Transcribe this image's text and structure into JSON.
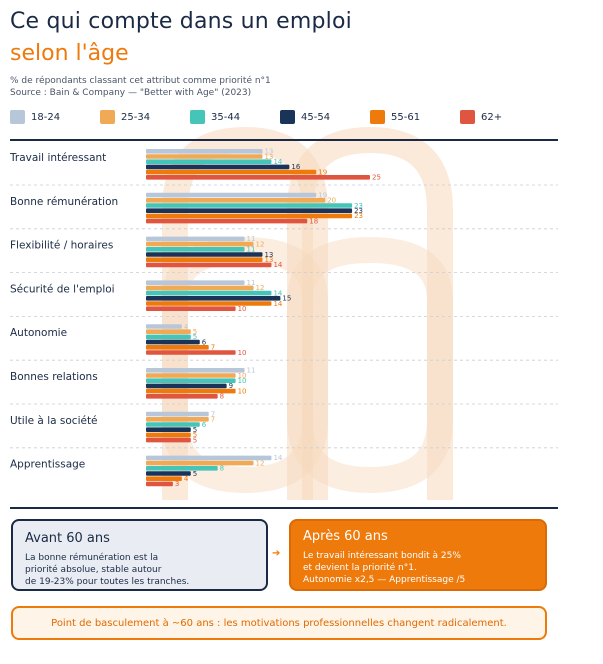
{
  "title": "Ce qui compte dans un emploi",
  "subtitle": "selon l'âge",
  "note_line1": "% de répondants classant cet attribut comme priorité n°1",
  "note_line2": "Source : Bain & Company — \"Better with Age\" (2023)",
  "colors": {
    "18-24": "#b8c6da",
    "25-34": "#f0a955",
    "35-44": "#45c4b8",
    "45-54": "#1a3358",
    "55-61": "#ee7a0c",
    "62+": "#e0553f",
    "dark": "#1a2a44",
    "accent": "#ee7a0c"
  },
  "chart_data": {
    "type": "bar",
    "orientation": "horizontal",
    "categories": [
      "Travail intéressant",
      "Bonne rémunération",
      "Flexibilité / horaires",
      "Sécurité de l'emploi",
      "Autonomie",
      "Bonnes relations",
      "Utile à la société",
      "Apprentissage"
    ],
    "series": [
      {
        "name": "18-24",
        "values": [
          13,
          19,
          11,
          11,
          4,
          11,
          7,
          14
        ]
      },
      {
        "name": "25-34",
        "values": [
          13,
          20,
          12,
          12,
          5,
          10,
          7,
          12
        ]
      },
      {
        "name": "35-44",
        "values": [
          14,
          23,
          11,
          14,
          5,
          10,
          6,
          8
        ]
      },
      {
        "name": "45-54",
        "values": [
          16,
          23,
          13,
          15,
          6,
          9,
          5,
          5
        ]
      },
      {
        "name": "55-61",
        "values": [
          19,
          23,
          13,
          14,
          7,
          10,
          5,
          4
        ]
      },
      {
        "name": "62+",
        "values": [
          25,
          18,
          14,
          10,
          10,
          8,
          5,
          3
        ]
      }
    ],
    "xlim": [
      0,
      25
    ],
    "legend": "top",
    "grid": false
  },
  "box_left": {
    "title": "Avant 60 ans",
    "text": "La bonne rémunération est la\npriorité absolue, stable autour\nde 19-23% pour toutes les tranches."
  },
  "box_right": {
    "title": "Après 60 ans",
    "text": "Le travail intéressant bondit à 25%\net devient la priorité n°1.\nAutonomie x2,5 — Apprentissage /5"
  },
  "arrow": "➔",
  "banner": "Point de basculement à ~60 ans : les motivations professionnelles changent radicalement."
}
